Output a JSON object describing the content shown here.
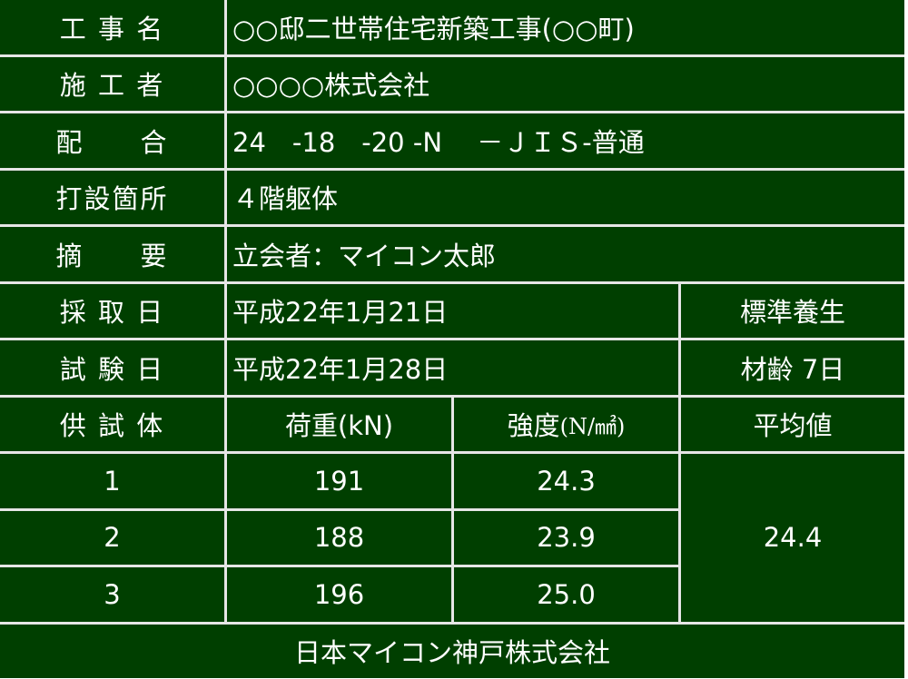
{
  "colors": {
    "background": "#003f00",
    "text": "#ffffff",
    "lines": "#e6e6e6"
  },
  "rows": {
    "project": {
      "label": "工 事 名",
      "value": "○○邸二世帯住宅新築工事(○○町)"
    },
    "contractor": {
      "label": "施 工 者",
      "value": "○○○○株式会社"
    },
    "mix": {
      "label": "配　　合",
      "value": "24　-18　-20 -N　 －ＪＩＳ-普通"
    },
    "location": {
      "label": "打設箇所",
      "value": "４階躯体"
    },
    "remarks": {
      "label": "摘　　要",
      "value": "立会者：マイコン太郎"
    },
    "sampling": {
      "label": "採 取 日",
      "value": "平成22年1月21日",
      "extra": "標準養生"
    },
    "testing": {
      "label": "試 験 日",
      "value": "平成22年1月28日",
      "extra": "材齢 7日"
    }
  },
  "table": {
    "headers": {
      "specimen": "供 試 体",
      "load": "荷重(kN)",
      "strength": "強度",
      "strength_unit": "(N/㎟)",
      "average": "平均値"
    },
    "specimens": [
      {
        "no": "1",
        "load": "191",
        "strength": "24.3"
      },
      {
        "no": "2",
        "load": "188",
        "strength": "23.9"
      },
      {
        "no": "3",
        "load": "196",
        "strength": "25.0"
      }
    ],
    "average": "24.4"
  },
  "footer": "日本マイコン神戸株式会社"
}
